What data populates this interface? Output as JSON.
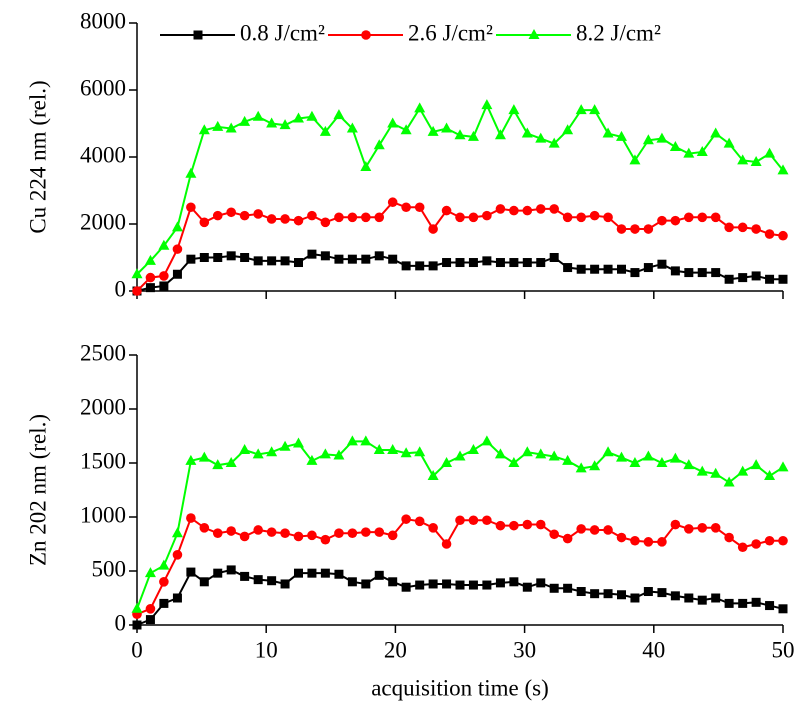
{
  "chart_data": [
    {
      "type": "line",
      "ylabel": "Cu 224 nm  (rel.)",
      "x": [
        0,
        1.04,
        2.08,
        3.13,
        4.17,
        5.21,
        6.25,
        7.29,
        8.33,
        9.38,
        10.42,
        11.46,
        12.5,
        13.54,
        14.58,
        15.63,
        16.67,
        17.71,
        18.75,
        19.79,
        20.83,
        21.88,
        22.92,
        23.96,
        25,
        26.04,
        27.08,
        28.13,
        29.17,
        30.21,
        31.25,
        32.29,
        33.33,
        34.38,
        35.42,
        36.46,
        37.5,
        38.54,
        39.58,
        40.63,
        41.67,
        42.71,
        43.75,
        44.79,
        45.83,
        46.88,
        47.92,
        48.96,
        50
      ],
      "xlim": [
        0,
        50
      ],
      "xticks": [
        0,
        10,
        20,
        30,
        40,
        50
      ],
      "xtick_labels": false,
      "ylim": [
        0,
        8000
      ],
      "yticks": [
        0,
        2000,
        4000,
        6000,
        8000
      ],
      "legend": "top",
      "series": [
        {
          "name": "0.8 J/cm²",
          "color": "#000000",
          "marker": "square",
          "values": [
            0,
            100,
            150,
            500,
            950,
            1000,
            1000,
            1050,
            1000,
            900,
            900,
            900,
            850,
            1100,
            1050,
            950,
            950,
            950,
            1050,
            950,
            750,
            750,
            750,
            850,
            850,
            850,
            900,
            850,
            850,
            850,
            850,
            1000,
            700,
            650,
            650,
            650,
            650,
            550,
            700,
            800,
            600,
            550,
            550,
            550,
            350,
            400,
            450,
            350,
            350
          ]
        },
        {
          "name": "2.6 J/cm²",
          "color": "#ff0000",
          "marker": "circle",
          "values": [
            0,
            400,
            450,
            1250,
            2500,
            2050,
            2250,
            2350,
            2250,
            2300,
            2150,
            2150,
            2100,
            2250,
            2050,
            2200,
            2200,
            2200,
            2200,
            2650,
            2500,
            2500,
            1850,
            2400,
            2200,
            2200,
            2250,
            2450,
            2400,
            2400,
            2450,
            2450,
            2200,
            2200,
            2250,
            2200,
            1850,
            1850,
            1850,
            2100,
            2100,
            2200,
            2200,
            2200,
            1900,
            1900,
            1850,
            1700,
            1650
          ]
        },
        {
          "name": "8.2 J/cm²",
          "color": "#00ff00",
          "marker": "triangle",
          "values": [
            500,
            900,
            1350,
            1900,
            3500,
            4800,
            4900,
            4850,
            5050,
            5200,
            5000,
            4950,
            5150,
            5200,
            4750,
            5250,
            4850,
            3700,
            4350,
            5000,
            4800,
            5450,
            4750,
            4850,
            4650,
            4600,
            5550,
            4650,
            5400,
            4700,
            4550,
            4400,
            4800,
            5400,
            5400,
            4700,
            4600,
            3900,
            4500,
            4550,
            4300,
            4100,
            4150,
            4700,
            4400,
            3900,
            3850,
            4100,
            3600
          ]
        }
      ]
    },
    {
      "type": "line",
      "ylabel": "Zn 202 nm  (rel.)",
      "xlabel": "acquisition time (s)",
      "x": [
        0,
        1.04,
        2.08,
        3.13,
        4.17,
        5.21,
        6.25,
        7.29,
        8.33,
        9.38,
        10.42,
        11.46,
        12.5,
        13.54,
        14.58,
        15.63,
        16.67,
        17.71,
        18.75,
        19.79,
        20.83,
        21.88,
        22.92,
        23.96,
        25,
        26.04,
        27.08,
        28.13,
        29.17,
        30.21,
        31.25,
        32.29,
        33.33,
        34.38,
        35.42,
        36.46,
        37.5,
        38.54,
        39.58,
        40.63,
        41.67,
        42.71,
        43.75,
        44.79,
        45.83,
        46.88,
        47.92,
        48.96,
        50
      ],
      "xlim": [
        0,
        50
      ],
      "xticks": [
        0,
        10,
        20,
        30,
        40,
        50
      ],
      "xtick_labels": true,
      "ylim": [
        0,
        2500
      ],
      "yticks": [
        0,
        500,
        1000,
        1500,
        2000,
        2500
      ],
      "series": [
        {
          "color": "#000000",
          "marker": "square",
          "values": [
            0,
            50,
            200,
            250,
            490,
            400,
            480,
            510,
            450,
            420,
            410,
            380,
            480,
            480,
            480,
            470,
            400,
            380,
            460,
            400,
            350,
            370,
            380,
            380,
            370,
            370,
            370,
            390,
            400,
            350,
            390,
            340,
            340,
            310,
            290,
            290,
            280,
            250,
            310,
            300,
            270,
            250,
            230,
            250,
            200,
            200,
            210,
            180,
            150
          ]
        },
        {
          "color": "#ff0000",
          "marker": "circle",
          "values": [
            100,
            150,
            400,
            650,
            990,
            900,
            850,
            870,
            820,
            880,
            860,
            850,
            820,
            830,
            790,
            850,
            850,
            860,
            860,
            830,
            980,
            960,
            900,
            750,
            970,
            970,
            970,
            920,
            920,
            930,
            930,
            840,
            800,
            890,
            880,
            880,
            810,
            780,
            770,
            770,
            930,
            890,
            900,
            900,
            810,
            720,
            750,
            780,
            780
          ]
        },
        {
          "color": "#00ff00",
          "marker": "triangle",
          "values": [
            150,
            480,
            550,
            850,
            1520,
            1550,
            1480,
            1500,
            1620,
            1580,
            1600,
            1650,
            1680,
            1520,
            1580,
            1570,
            1700,
            1700,
            1620,
            1620,
            1590,
            1600,
            1380,
            1500,
            1560,
            1620,
            1700,
            1580,
            1500,
            1600,
            1580,
            1560,
            1520,
            1450,
            1470,
            1600,
            1550,
            1500,
            1560,
            1500,
            1540,
            1480,
            1420,
            1400,
            1320,
            1420,
            1480,
            1380,
            1460
          ]
        }
      ]
    }
  ]
}
